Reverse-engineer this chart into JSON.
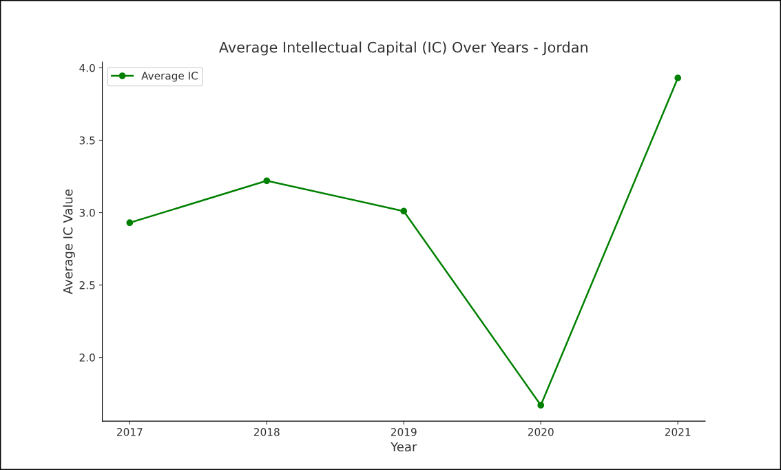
{
  "chart_data": {
    "type": "line",
    "title": "Average Intellectual Capital (IC) Over Years - Jordan",
    "xlabel": "Year",
    "ylabel": "Average IC Value",
    "x": [
      2017,
      2018,
      2019,
      2020,
      2021
    ],
    "series": [
      {
        "name": "Average IC",
        "color": "#008000",
        "values": [
          2.93,
          3.22,
          3.01,
          1.67,
          3.93
        ]
      }
    ],
    "xlim": [
      2016.8,
      2021.2
    ],
    "xticks": [
      2017,
      2018,
      2019,
      2020,
      2021
    ],
    "ylim": [
      1.56,
      4.04
    ],
    "yticks": [
      {
        "value": 2,
        "label": "2.0"
      },
      2.5,
      {
        "value": 3,
        "label": "3.0"
      },
      3.5,
      {
        "value": 4,
        "label": "4.0"
      }
    ],
    "marker": "circle",
    "line_style": "solid",
    "legend": "top left",
    "grid": false
  }
}
